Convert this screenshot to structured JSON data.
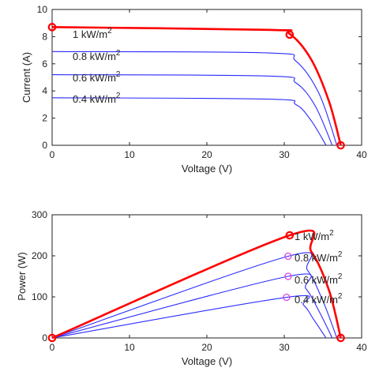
{
  "chart_data": [
    {
      "type": "line",
      "title": "",
      "xlabel": "Voltage (V)",
      "ylabel": "Current (A)",
      "xlim": [
        0,
        40
      ],
      "ylim": [
        0,
        10
      ],
      "xticks": [
        0,
        10,
        20,
        30,
        40
      ],
      "yticks": [
        0,
        2,
        4,
        6,
        8,
        10
      ],
      "grid": false,
      "colors": {
        "highlight": "#ff0000",
        "series": "#2a2aff",
        "axis": "#222222"
      },
      "series": [
        {
          "name": "1 kW/m",
          "superscript": "2",
          "highlight": true,
          "voc": 37.3,
          "x": [
            0,
            28.0,
            30.7,
            33.5,
            35.8,
            37.3
          ],
          "y": [
            8.7,
            8.5,
            8.2,
            6.3,
            3.2,
            0
          ],
          "markers": [
            [
              0,
              8.7
            ],
            [
              30.7,
              8.15
            ],
            [
              37.3,
              0
            ]
          ]
        },
        {
          "name": "0.8 kW/m",
          "superscript": "2",
          "voc": 36.8,
          "x": [
            0,
            28.0,
            31.5,
            34.5,
            36.8
          ],
          "y": [
            6.9,
            6.8,
            6.2,
            3.8,
            0
          ]
        },
        {
          "name": "0.6 kW/m",
          "superscript": "2",
          "voc": 36.2,
          "x": [
            0,
            28.0,
            31.5,
            34.0,
            36.2
          ],
          "y": [
            5.2,
            5.1,
            4.6,
            2.9,
            0
          ]
        },
        {
          "name": "0.4 kW/m",
          "superscript": "2",
          "voc": 35.4,
          "x": [
            0,
            28.0,
            31.5,
            33.5,
            35.4
          ],
          "y": [
            3.5,
            3.4,
            3.0,
            1.8,
            0
          ]
        }
      ]
    },
    {
      "type": "line",
      "title": "",
      "xlabel": "Voltage (V)",
      "ylabel": "Power (W)",
      "xlim": [
        0,
        40
      ],
      "ylim": [
        0,
        300
      ],
      "xticks": [
        0,
        10,
        20,
        30,
        40
      ],
      "yticks": [
        0,
        100,
        200,
        300
      ],
      "grid": false,
      "colors": {
        "highlight": "#ff0000",
        "series": "#2a2aff",
        "mpp": "#e040e0",
        "axis": "#222222"
      },
      "series": [
        {
          "name": "1 kW/m",
          "superscript": "2",
          "highlight": true,
          "x": [
            0,
            30.7,
            33.5,
            35.8,
            37.3
          ],
          "y": [
            0,
            250,
            210,
            115,
            0
          ],
          "markers": [
            [
              0,
              0
            ],
            [
              30.7,
              250
            ],
            [
              37.3,
              0
            ]
          ]
        },
        {
          "name": "0.8 kW/m",
          "superscript": "2",
          "x": [
            0,
            30.5,
            33.0,
            35.0,
            36.8
          ],
          "y": [
            0,
            199,
            165,
            90,
            0
          ],
          "mpp": [
            30.5,
            199
          ]
        },
        {
          "name": "0.6 kW/m",
          "superscript": "2",
          "x": [
            0,
            30.5,
            32.8,
            34.5,
            36.2
          ],
          "y": [
            0,
            150,
            120,
            65,
            0
          ],
          "mpp": [
            30.5,
            150
          ]
        },
        {
          "name": "0.4 kW/m",
          "superscript": "2",
          "x": [
            0,
            30.3,
            32.5,
            33.8,
            35.4
          ],
          "y": [
            0,
            99,
            80,
            45,
            0
          ],
          "mpp": [
            30.3,
            99
          ]
        }
      ]
    }
  ]
}
